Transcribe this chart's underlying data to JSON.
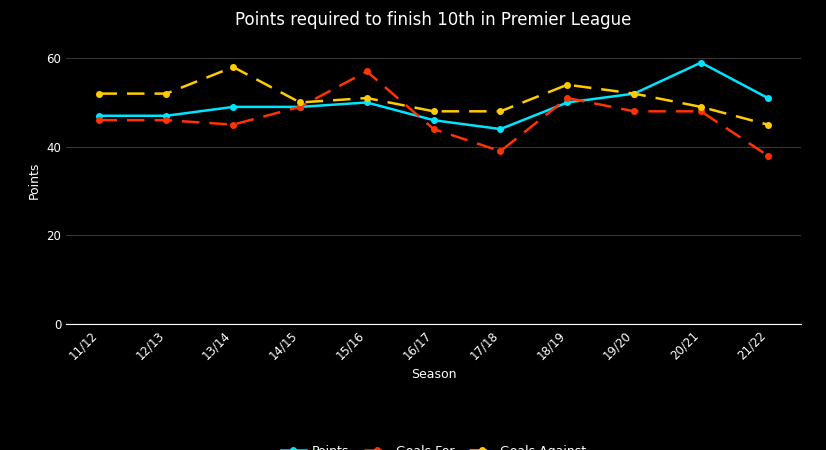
{
  "title": "Points required to finish 10th in Premier League",
  "seasons": [
    "11/12",
    "12/13",
    "13/14",
    "14/15",
    "15/16",
    "16/17",
    "17/18",
    "18/19",
    "19/20",
    "20/21",
    "21/22"
  ],
  "points": [
    47,
    47,
    49,
    49,
    50,
    46,
    44,
    50,
    52,
    59,
    51
  ],
  "goals_for": [
    46,
    46,
    45,
    49,
    57,
    44,
    39,
    51,
    48,
    48,
    38
  ],
  "goals_against": [
    52,
    52,
    58,
    50,
    51,
    48,
    48,
    54,
    52,
    49,
    45
  ],
  "color_points": "#00e5ff",
  "color_goals_for": "#ff3300",
  "color_goals_against": "#ffcc00",
  "background": "#000000",
  "text_color": "#ffffff",
  "grid_color": "#444444",
  "ylim": [
    0,
    65
  ],
  "yticks": [
    0,
    20,
    40,
    60
  ],
  "xlabel": "Season",
  "ylabel": "Points",
  "title_fontsize": 12,
  "label_fontsize": 9,
  "tick_fontsize": 8.5,
  "legend_fontsize": 9,
  "linewidth": 1.8,
  "marker": "o",
  "markersize": 4,
  "dash_on": 7,
  "dash_off": 4
}
